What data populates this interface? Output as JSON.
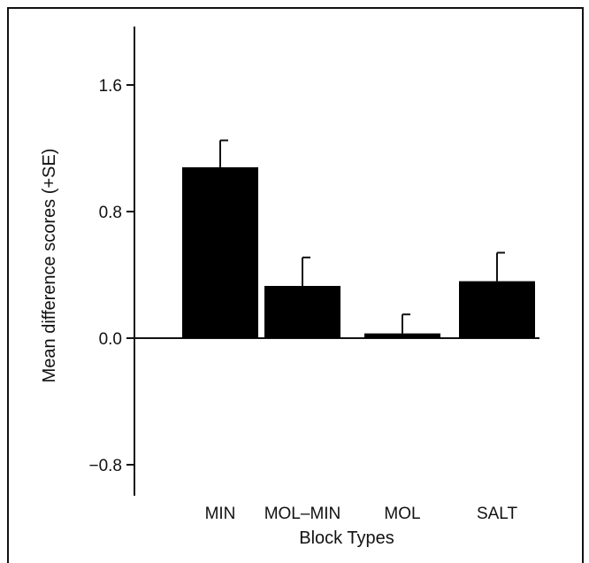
{
  "chart_data": {
    "type": "bar",
    "categories": [
      "MIN",
      "MOL–MIN",
      "MOL",
      "SALT"
    ],
    "values": [
      1.08,
      0.33,
      0.03,
      0.36
    ],
    "error_plus": [
      0.17,
      0.18,
      0.12,
      0.18
    ],
    "title": "",
    "xlabel": "Block Types",
    "ylabel": "Mean difference scores (+SE)",
    "ylim": [
      -1.0,
      1.95
    ],
    "yticks": [
      -0.8,
      0.0,
      0.8,
      1.6
    ],
    "ytick_labels": [
      "−0.8",
      "0.0",
      "0.8",
      "1.6"
    ],
    "grid": false,
    "bar_color": "#000000"
  }
}
